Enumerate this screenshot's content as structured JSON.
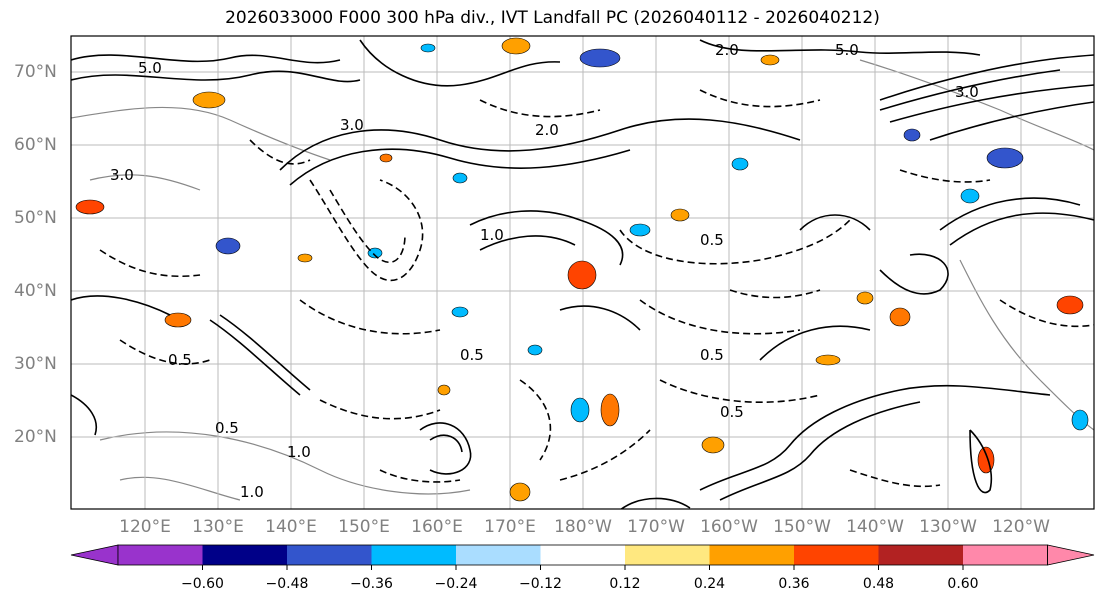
{
  "title": "2026033000 F000 300 hPa div., IVT Landfall PC (2026040112 - 2026040212)",
  "lat_labels": [
    "70°N",
    "60°N",
    "50°N",
    "40°N",
    "30°N",
    "20°N"
  ],
  "lon_labels": [
    "120°E",
    "130°E",
    "140°E",
    "150°E",
    "160°E",
    "170°E",
    "180°W",
    "170°W",
    "160°W",
    "150°W",
    "140°W",
    "130°W",
    "120°W"
  ],
  "colorbar": {
    "ticks": [
      "−0.60",
      "−0.48",
      "−0.36",
      "−0.24",
      "−0.12",
      "0.12",
      "0.24",
      "0.36",
      "0.48",
      "0.60"
    ],
    "colors": [
      "#9933cc",
      "#000088",
      "#3355cc",
      "#00bbff",
      "#aaddff",
      "#ffffff",
      "#ffe880",
      "#ffa000",
      "#ff4400",
      "#b22222",
      "#ff88aa"
    ]
  },
  "contour_labels": [
    "5.0",
    "5.0",
    "3.0",
    "3.0",
    "2.0",
    "1.0",
    "0.5",
    "0.5",
    "0.5",
    "0.5",
    "1.0",
    "0.5",
    "1.0",
    "3.0",
    "2.0",
    "0.5"
  ]
}
